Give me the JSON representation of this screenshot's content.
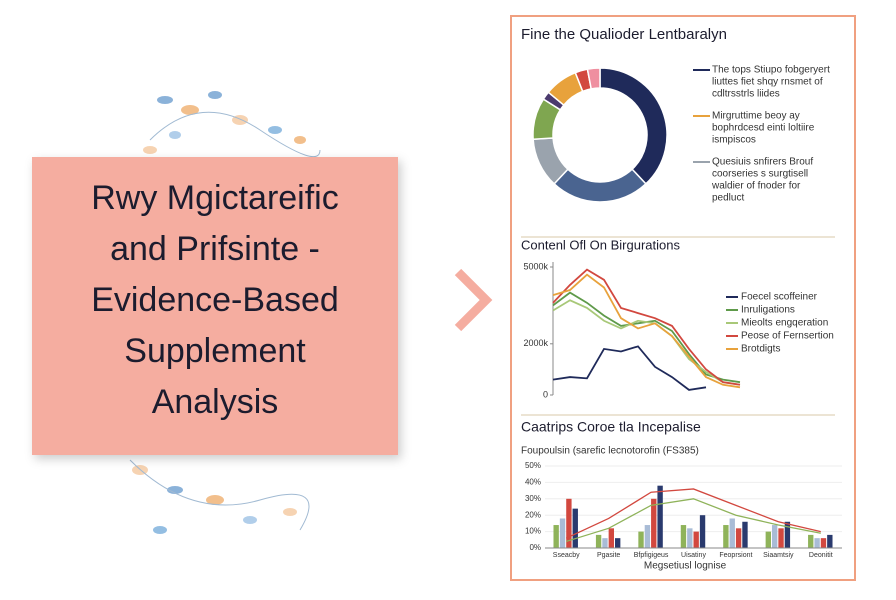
{
  "title_card": {
    "lines": [
      "Rwy Mgictareific",
      "and Prifsinte -",
      "Evidence-Based",
      "Supplement",
      "Analysis"
    ]
  },
  "report": {
    "title": "Fine the Qualioder Lentbaralyn"
  },
  "chart_data": [
    {
      "type": "pie",
      "donut": true,
      "values": [
        38,
        24,
        12,
        10,
        2,
        8,
        3,
        3
      ],
      "colors": [
        "#1f2a5a",
        "#4a6490",
        "#9aa3ad",
        "#7fa650",
        "#4b3a6e",
        "#e8a23c",
        "#d2483f",
        "#ef8fa0"
      ],
      "legend": [
        {
          "color": "#1f2a5a",
          "lines": [
            "The tops Stiupo fobgeryert",
            "liuttes fiet shqy rnsmet of",
            "cdltrsstrls liides"
          ]
        },
        {
          "color": "#e8a23c",
          "lines": [
            "Mirgruttime beoy ay",
            "bophrdcesd einti loltiire",
            "ismpiscos"
          ]
        },
        {
          "color": "#9aa3ad",
          "lines": [
            "Quesiuis snfirers Brouf",
            "coorseries s surgtisell",
            "waldier of fnoder for",
            "pedluct"
          ]
        }
      ]
    },
    {
      "type": "line",
      "title": "Contenl Ofl On Birgurations",
      "x": [
        0,
        1,
        2,
        3,
        4,
        5,
        6,
        7,
        8,
        9,
        10,
        11
      ],
      "xlim": [
        0,
        11
      ],
      "ylim": [
        0,
        5000000
      ],
      "yticks": [
        0,
        {
          "value": 2000000,
          "label": "2000k"
        },
        {
          "value": 5000000,
          "label": "5000k"
        }
      ],
      "series": [
        {
          "name": "Foecel scoffeiner",
          "color": "#1f2a5a",
          "values": [
            600000,
            700000,
            650000,
            1800000,
            1700000,
            1900000,
            1100000,
            700000,
            200000,
            300000,
            null,
            null
          ]
        },
        {
          "name": "Inruligations",
          "color": "#5f9a4a",
          "values": [
            3500000,
            4000000,
            3600000,
            3100000,
            2700000,
            2800000,
            2900000,
            2500000,
            1600000,
            800000,
            600000,
            500000
          ]
        },
        {
          "name": "Mieolts engqeration",
          "color": "#a8c878",
          "values": [
            3300000,
            3700000,
            3400000,
            2900000,
            2600000,
            2900000,
            2800000,
            2300000,
            1400000,
            900000,
            500000,
            400000
          ]
        },
        {
          "name": "Peose of Fernsertion",
          "color": "#d2483f",
          "values": [
            3600000,
            4300000,
            4900000,
            4500000,
            3400000,
            3200000,
            3000000,
            2700000,
            1800000,
            1000000,
            500000,
            400000
          ]
        },
        {
          "name": "Brotdigts",
          "color": "#e8a23c",
          "values": [
            3900000,
            4100000,
            4700000,
            4200000,
            3000000,
            2600000,
            2800000,
            2300000,
            1500000,
            700000,
            400000,
            300000
          ]
        }
      ]
    },
    {
      "type": "bar",
      "title": "Caatrips Coroe tla Incepalise",
      "subtitle": "Foupoulsin (sarefic lecnotorofin (FS385)",
      "x_label": "Megsetiusl lognise",
      "categories": [
        "Sseacby",
        "Pgasite",
        "Bfpfigigeus",
        "Uisatiny",
        "Feoprsiont",
        "Siaamtsiy",
        "Deonitit"
      ],
      "ylim": [
        0,
        50
      ],
      "yticks": [
        {
          "value": 0,
          "label": "0%"
        },
        {
          "value": 10,
          "label": "10%"
        },
        {
          "value": 20,
          "label": "20%"
        },
        {
          "value": 30,
          "label": "30%"
        },
        {
          "value": 40,
          "label": "40%"
        },
        {
          "value": 50,
          "label": "50%"
        }
      ],
      "series": [
        {
          "type": "bar",
          "color": "#8fb35a",
          "values": [
            14,
            8,
            10,
            14,
            14,
            10,
            8
          ]
        },
        {
          "type": "bar",
          "color": "#a9bcd6",
          "values": [
            18,
            6,
            14,
            12,
            18,
            14,
            6
          ]
        },
        {
          "type": "bar",
          "color": "#d2483f",
          "values": [
            30,
            12,
            30,
            10,
            12,
            12,
            6
          ]
        },
        {
          "type": "bar",
          "color": "#2a3a6e",
          "values": [
            24,
            6,
            38,
            20,
            16,
            16,
            8
          ]
        },
        {
          "type": "line",
          "color": "#d2483f",
          "values": [
            6,
            18,
            34,
            36,
            26,
            16,
            10
          ]
        },
        {
          "type": "line",
          "color": "#8fb35a",
          "values": [
            4,
            12,
            26,
            30,
            20,
            14,
            9
          ]
        }
      ]
    }
  ]
}
